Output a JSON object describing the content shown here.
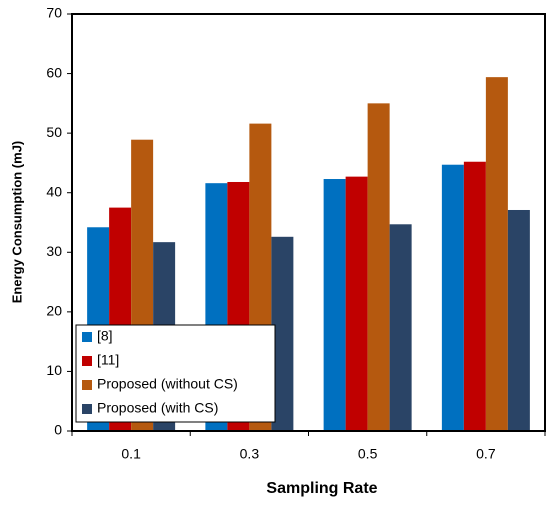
{
  "chart_data": {
    "type": "bar",
    "x_label": "Sampling Rate",
    "y_label": "Energy Consumption (mJ)",
    "categories": [
      "0.1",
      "0.3",
      "0.5",
      "0.7"
    ],
    "series": [
      {
        "name": "[8]",
        "color": "#0070c0",
        "values": [
          34.2,
          41.6,
          42.3,
          44.7
        ]
      },
      {
        "name": "[11]",
        "color": "#c00000",
        "values": [
          37.5,
          41.8,
          42.7,
          45.2
        ]
      },
      {
        "name": "Proposed (without CS)",
        "color": "#b5590f",
        "values": [
          48.9,
          51.6,
          55.0,
          59.4
        ]
      },
      {
        "name": "Proposed (with CS)",
        "color": "#2a4466",
        "values": [
          31.7,
          32.6,
          34.7,
          37.1
        ]
      }
    ],
    "ylim": [
      0,
      70
    ],
    "yticks": [
      0,
      10,
      20,
      30,
      40,
      50,
      60,
      70
    ],
    "legend": "lower-left"
  }
}
